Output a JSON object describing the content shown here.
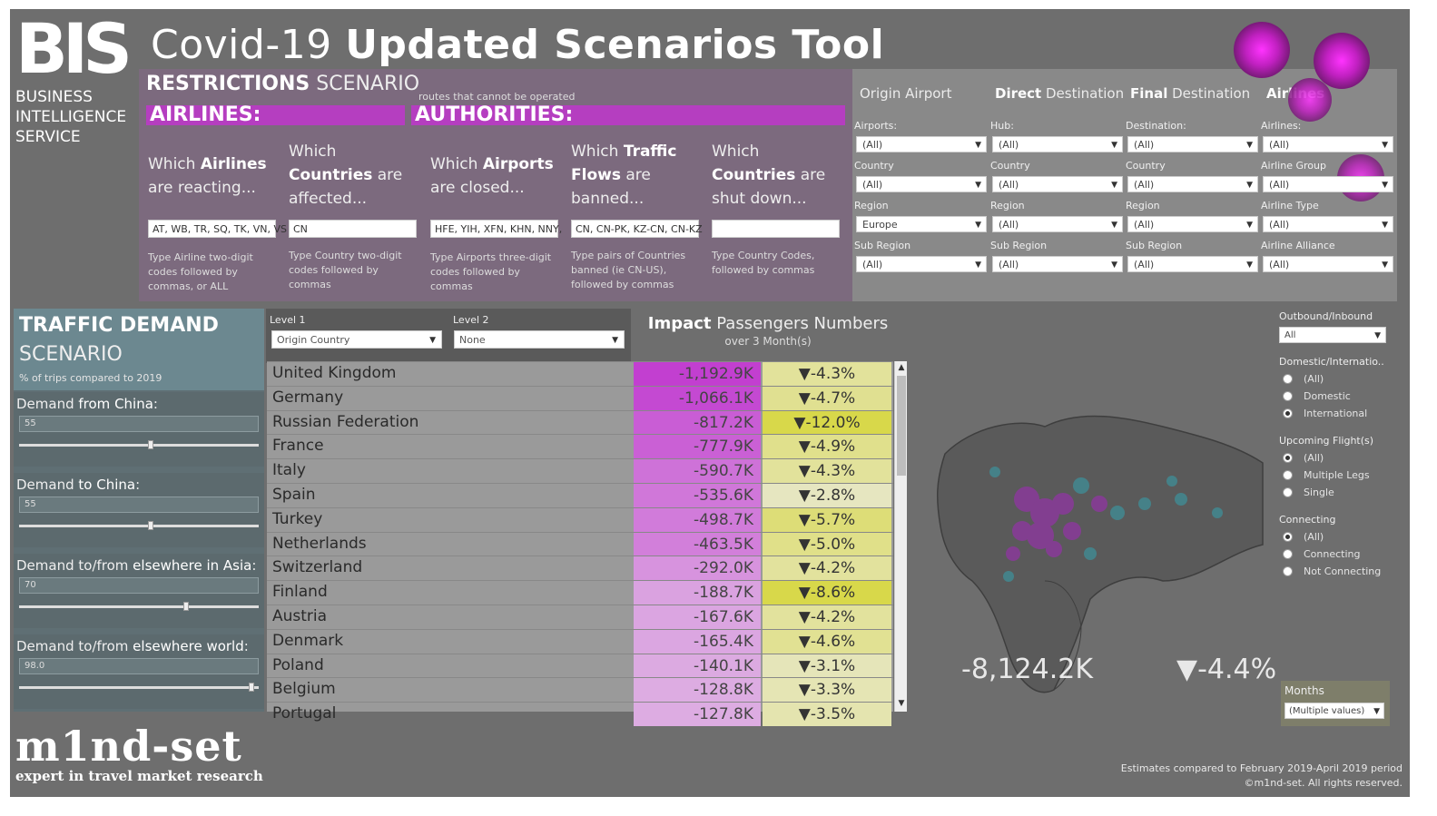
{
  "header": {
    "logo_text": "BIS",
    "title_light": "Covid-19 ",
    "title_bold": "Updated Scenarios Tool",
    "subtitle_lines": [
      "BUSINESS",
      "INTELLIGENCE",
      "SERVICE"
    ]
  },
  "restrictions": {
    "title_bold": "RESTRICTIONS",
    "title_light": " SCENARIO",
    "note": "routes that cannot be operated",
    "airlines_label": "AIRLINES:",
    "authorities_label": "AUTHORITIES:",
    "questions": [
      {
        "pre": "Which ",
        "bold": "Airlines",
        "post": " are reacting...",
        "value": "AT, WB, TR, SQ, TK, VN, VS",
        "hint": "Type Airline two-digit codes followed by commas, or ALL"
      },
      {
        "pre": "Which ",
        "bold": "Countries",
        "post": " are affected...",
        "value": "CN",
        "hint": "Type Country two-digit codes followed by commas"
      },
      {
        "pre": "Which ",
        "bold": "Airports",
        "post": " are closed...",
        "value": "HFE, YIH, XFN, KHN, NNY,",
        "hint": "Type Airports three-digit codes followed by commas"
      },
      {
        "pre": "Which ",
        "bold": "Traffic Flows",
        "post": " are banned...",
        "value": "CN, CN-PK, KZ-CN, CN-KZ",
        "hint": "Type pairs of Countries banned (ie CN-US), followed by commas"
      },
      {
        "pre": "Which ",
        "bold": "Countries",
        "post": " are shut down...",
        "value": "",
        "hint": "Type Country Codes, followed by commas"
      }
    ]
  },
  "filters": {
    "tabs": [
      {
        "bold": "",
        "light": "Origin Airport"
      },
      {
        "bold": "Direct",
        "light": " Destination"
      },
      {
        "bold": "Final",
        "light": " Destination"
      },
      {
        "bold": "Airlines",
        "light": ""
      }
    ],
    "columns": [
      [
        {
          "label": "Airports:",
          "value": "(All)"
        },
        {
          "label": "Country",
          "value": "(All)"
        },
        {
          "label": "Region",
          "value": "Europe"
        },
        {
          "label": "Sub Region",
          "value": "(All)"
        }
      ],
      [
        {
          "label": "Hub:",
          "value": "(All)"
        },
        {
          "label": "Country",
          "value": "(All)"
        },
        {
          "label": "Region",
          "value": "(All)"
        },
        {
          "label": "Sub Region",
          "value": "(All)"
        }
      ],
      [
        {
          "label": "Destination:",
          "value": "(All)"
        },
        {
          "label": "Country",
          "value": "(All)"
        },
        {
          "label": "Region",
          "value": "(All)"
        },
        {
          "label": "Sub Region",
          "value": "(All)"
        }
      ],
      [
        {
          "label": "Airlines:",
          "value": "(All)"
        },
        {
          "label": "Airline Group",
          "value": "(All)"
        },
        {
          "label": "Airline Type",
          "value": "(All)"
        },
        {
          "label": "Airline Alliance",
          "value": "(All)"
        }
      ]
    ]
  },
  "traffic": {
    "title1": "TRAFFIC DEMAND",
    "title2": "SCENARIO",
    "note": "% of trips compared to 2019",
    "sliders": [
      {
        "pre": "Demand ",
        "bold": "from China",
        "post": ":",
        "value": "55",
        "level": 0.55
      },
      {
        "pre": "Demand ",
        "bold": "to China",
        "post": ":",
        "value": "55",
        "level": 0.55
      },
      {
        "pre": "Demand to/from ",
        "bold": "elsewhere in Asia",
        "post": ":",
        "value": "70",
        "level": 0.7
      },
      {
        "pre": "Demand to/from ",
        "bold": "elsewhere world",
        "post": ":",
        "value": "98.0",
        "level": 0.98
      }
    ]
  },
  "levels": {
    "level1_label": "Level 1",
    "level1_value": "Origin Country",
    "level2_label": "Level 2",
    "level2_value": "None"
  },
  "impact": {
    "title_bold": "Impact",
    "title_light": " Passengers Numbers",
    "subtitle": "over 3 Month(s)"
  },
  "table_rows": [
    {
      "name": "United Kingdom",
      "value": "-1,192.9K",
      "pct": "▼-4.3%"
    },
    {
      "name": "Germany",
      "value": "-1,066.1K",
      "pct": "▼-4.7%"
    },
    {
      "name": "Russian Federation",
      "value": "-817.2K",
      "pct": "▼-12.0%"
    },
    {
      "name": "France",
      "value": "-777.9K",
      "pct": "▼-4.9%"
    },
    {
      "name": "Italy",
      "value": "-590.7K",
      "pct": "▼-4.3%"
    },
    {
      "name": "Spain",
      "value": "-535.6K",
      "pct": "▼-2.8%"
    },
    {
      "name": "Turkey",
      "value": "-498.7K",
      "pct": "▼-5.7%"
    },
    {
      "name": "Netherlands",
      "value": "-463.5K",
      "pct": "▼-5.0%"
    },
    {
      "name": "Switzerland",
      "value": "-292.0K",
      "pct": "▼-4.2%"
    },
    {
      "name": "Finland",
      "value": "-188.7K",
      "pct": "▼-8.6%"
    },
    {
      "name": "Austria",
      "value": "-167.6K",
      "pct": "▼-4.2%"
    },
    {
      "name": "Denmark",
      "value": "-165.4K",
      "pct": "▼-4.6%"
    },
    {
      "name": "Poland",
      "value": "-140.1K",
      "pct": "▼-3.1%"
    },
    {
      "name": "Belgium",
      "value": "-128.8K",
      "pct": "▼-3.3%"
    },
    {
      "name": "Portugal",
      "value": "-127.8K",
      "pct": "▼-3.5%"
    }
  ],
  "map": {
    "total": "-8,124.2K",
    "pct": "▼-4.4%"
  },
  "right_filters": {
    "outbound_label": "Outbound/Inbound",
    "outbound_value": "All",
    "groups": [
      {
        "title": "Domestic/Internatio..",
        "options": [
          "(All)",
          "Domestic",
          "International"
        ],
        "selected": 2
      },
      {
        "title": "Upcoming Flight(s)",
        "options": [
          "(All)",
          "Multiple Legs",
          "Single"
        ],
        "selected": 0
      },
      {
        "title": "Connecting",
        "options": [
          "(All)",
          "Connecting",
          "Not Connecting"
        ],
        "selected": 0
      }
    ],
    "months_label": "Months",
    "months_value": "(Multiple values)"
  },
  "footer": {
    "brand": "m1nd-set",
    "tagline": "expert in travel market research",
    "note1": "Estimates compared to February 2019-April 2019 period",
    "note2": "©m1nd-set. All rights reserved."
  },
  "colors": {
    "magenta": "#b53ec0",
    "yellow_high": "#d8d84a",
    "yellow_low": "#e7e7c8"
  }
}
